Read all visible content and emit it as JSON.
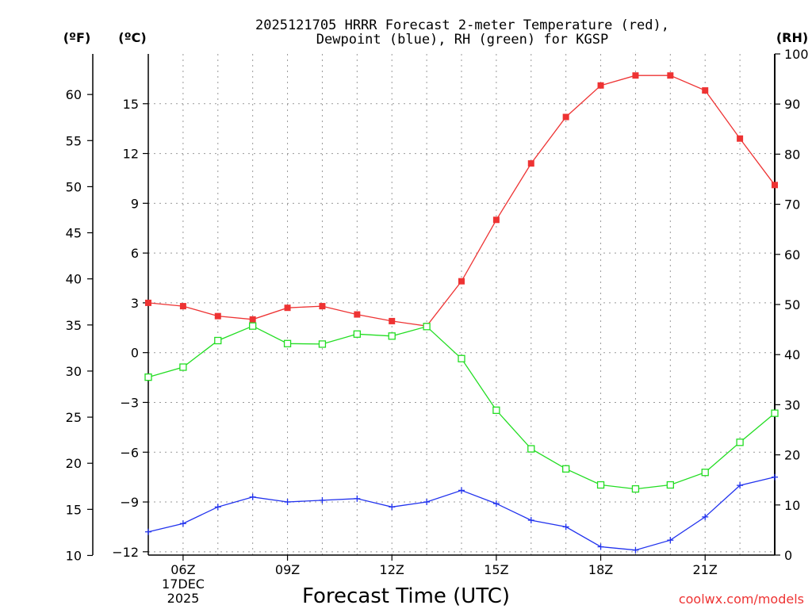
{
  "chart_data": {
    "type": "line",
    "title_line1": "2025121705 HRRR Forecast 2-meter Temperature (red),",
    "title_line2": "Dewpoint (blue), RH (green) for KGSP",
    "xlabel": "Forecast Time (UTC)",
    "credit": "coolwx.com/models",
    "units": {
      "fahrenheit": "(ºF)",
      "celsius": "(ºC)",
      "rh": "(RH)"
    },
    "x_hours": [
      5,
      6,
      7,
      8,
      9,
      10,
      11,
      12,
      13,
      14,
      15,
      16,
      17,
      18,
      19,
      20,
      21,
      22,
      23
    ],
    "x_ticks": [
      {
        "hour": 6,
        "label": "06Z"
      },
      {
        "hour": 9,
        "label": "09Z"
      },
      {
        "hour": 12,
        "label": "12Z"
      },
      {
        "hour": 15,
        "label": "15Z"
      },
      {
        "hour": 18,
        "label": "18Z"
      },
      {
        "hour": 21,
        "label": "21Z"
      }
    ],
    "date_label_1": "17DEC",
    "date_label_2": "2025",
    "xlim": [
      5,
      23
    ],
    "ylim_c": [
      -12.2,
      18.0
    ],
    "ylim_rh": [
      0,
      100
    ],
    "y_ticks_c": [
      "15",
      "12",
      "9",
      "6",
      "3",
      "0",
      "−3",
      "−6",
      "−9",
      "−12"
    ],
    "y_ticks_f": [
      "60",
      "55",
      "50",
      "45",
      "40",
      "35",
      "30",
      "25",
      "20",
      "15",
      "10"
    ],
    "y_ticks_rh": [
      "100",
      "90",
      "80",
      "70",
      "60",
      "50",
      "40",
      "30",
      "20",
      "10",
      "0"
    ],
    "series": [
      {
        "name": "Temperature",
        "color": "#ee3333",
        "marker": "filled-square",
        "axis": "celsius",
        "values": [
          3.0,
          2.8,
          2.2,
          2.0,
          2.7,
          2.8,
          2.3,
          1.9,
          1.6,
          4.3,
          8.0,
          11.4,
          14.2,
          16.1,
          16.7,
          16.7,
          15.8,
          12.9,
          10.1
        ]
      },
      {
        "name": "Dewpoint",
        "color": "#2233ee",
        "marker": "plus",
        "axis": "celsius",
        "values": [
          -10.8,
          -10.3,
          -9.3,
          -8.7,
          -9.0,
          -8.9,
          -8.8,
          -9.3,
          -9.0,
          -8.3,
          -9.1,
          -10.1,
          -10.5,
          -11.7,
          -11.9,
          -11.3,
          -9.9,
          -8.0,
          -7.5
        ]
      },
      {
        "name": "RH",
        "color": "#22dd22",
        "marker": "open-square",
        "axis": "rh",
        "values": [
          35.5,
          37.5,
          42.8,
          45.7,
          42.2,
          42.1,
          44.1,
          43.7,
          45.6,
          39.2,
          28.9,
          21.2,
          17.2,
          14.0,
          13.2,
          14.0,
          16.5,
          22.5,
          28.3
        ]
      }
    ]
  }
}
